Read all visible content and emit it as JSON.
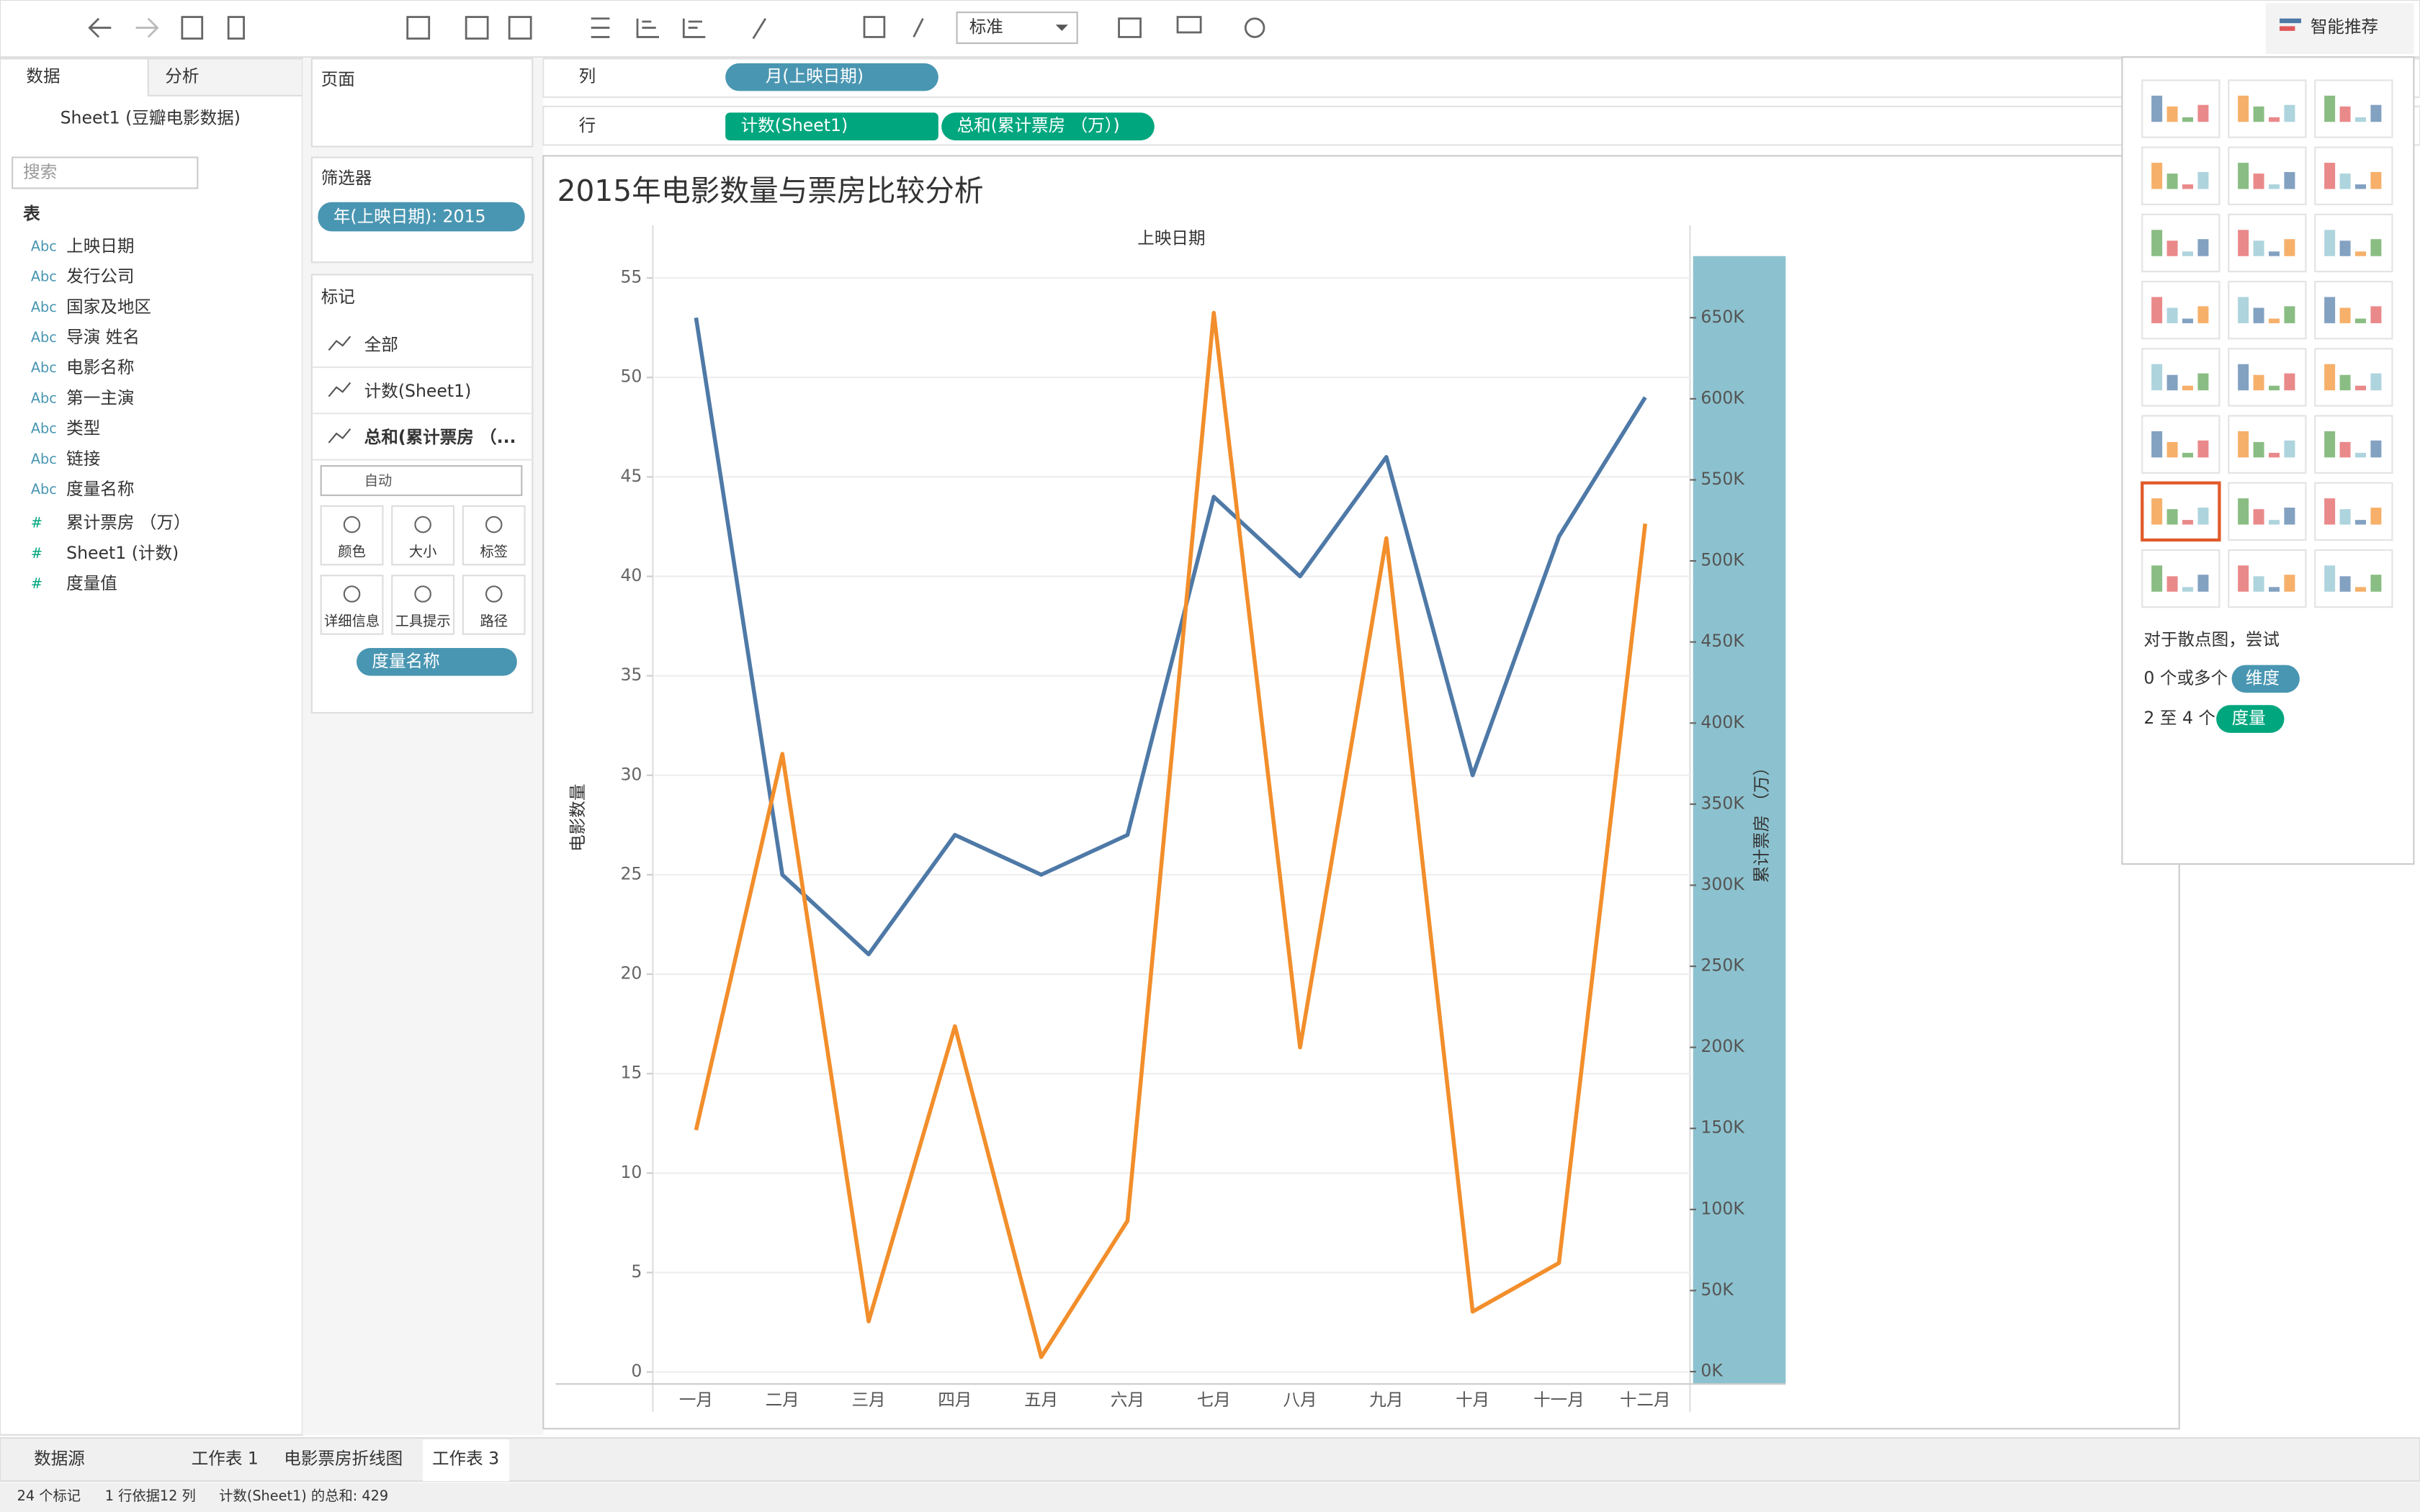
{
  "toolbar": {
    "view_size": "标准",
    "show_me": "智能推荐"
  },
  "data_pane": {
    "tabs": [
      "数据",
      "分析"
    ],
    "source": "Sheet1 (豆瓣电影数据)",
    "search": "搜索",
    "section": "表",
    "fields": [
      {
        "icon": "Abc",
        "name": "上映日期"
      },
      {
        "icon": "Abc",
        "name": "发行公司"
      },
      {
        "icon": "Abc",
        "name": "国家及地区"
      },
      {
        "icon": "Abc",
        "name": "导演 姓名"
      },
      {
        "icon": "Abc",
        "name": "电影名称"
      },
      {
        "icon": "Abc",
        "name": "第一主演"
      },
      {
        "icon": "Abc",
        "name": "类型"
      },
      {
        "icon": "Abc",
        "name": "链接"
      },
      {
        "icon": "Abc",
        "name": "度量名称"
      },
      {
        "icon": "#",
        "name": "累计票房 （万）"
      },
      {
        "icon": "#",
        "name": "Sheet1 (计数)"
      },
      {
        "icon": "#",
        "name": "度量值"
      }
    ]
  },
  "cards": {
    "pages": "页面",
    "filters": "筛选器",
    "filter_pill": "年(上映日期): 2015",
    "marks": "标记",
    "mark_rows": [
      "全部",
      "计数(Sheet1)",
      "总和(累计票房 （..."
    ],
    "mark_type": "自动",
    "mark_buttons": [
      "颜色",
      "大小",
      "标签",
      "详细信息",
      "工具提示",
      "路径"
    ],
    "color_pill": "度量名称"
  },
  "shelves": {
    "columns": "列",
    "columns_pill": "月(上映日期)",
    "rows": "行",
    "rows_pills": [
      "计数(Sheet1)",
      "总和(累计票房 （万）)"
    ]
  },
  "show_me": {
    "hint": "对于散点图，尝试",
    "dim_text": "0 个或多个",
    "dim_pill": "维度",
    "mea_text": "2 至 4 个",
    "mea_pill": "度量"
  },
  "sheet_tabs": [
    "数据源",
    "工作表 1",
    "电影票房折线图",
    "工作表 3"
  ],
  "status": [
    "24 个标记",
    "1 行依据12 列",
    "计数(Sheet1) 的总和: 429"
  ],
  "chart_data": {
    "type": "line",
    "title": "2015年电影数量与票房比较分析",
    "x_header": "上映日期",
    "y_label": "电影数量",
    "y2_label": "累计票房 （万）",
    "categories": [
      "一月",
      "二月",
      "三月",
      "四月",
      "五月",
      "六月",
      "七月",
      "八月",
      "九月",
      "十月",
      "十一月",
      "十二月"
    ],
    "series": [
      {
        "name": "计数(Sheet1)",
        "color": "#4e79a7",
        "values": [
          53,
          25,
          21,
          27,
          25,
          27,
          44,
          40,
          46,
          30,
          42,
          49
        ]
      },
      {
        "name": "总和(累计票房 （万）)",
        "color": "#f28e2b",
        "axis": "y2",
        "values": [
          149000,
          381000,
          31000,
          213000,
          9000,
          93000,
          653000,
          200000,
          514000,
          37000,
          67000,
          523000
        ]
      }
    ],
    "ylim": [
      -0.6,
      56.1
    ],
    "yticks": [
      0,
      5,
      10,
      15,
      20,
      25,
      30,
      35,
      40,
      45,
      50,
      55
    ],
    "y2lim": [
      -7600,
      688000
    ],
    "y2ticks": [
      {
        "value": 0,
        "label": "0K"
      },
      {
        "value": 50000,
        "label": "50K"
      },
      {
        "value": 100000,
        "label": "100K"
      },
      {
        "value": 150000,
        "label": "150K"
      },
      {
        "value": 200000,
        "label": "200K"
      },
      {
        "value": 250000,
        "label": "250K"
      },
      {
        "value": 300000,
        "label": "300K"
      },
      {
        "value": 350000,
        "label": "350K"
      },
      {
        "value": 400000,
        "label": "400K"
      },
      {
        "value": 450000,
        "label": "450K"
      },
      {
        "value": 500000,
        "label": "500K"
      },
      {
        "value": 550000,
        "label": "550K"
      },
      {
        "value": 600000,
        "label": "600K"
      },
      {
        "value": 650000,
        "label": "650K"
      }
    ],
    "grid": true
  }
}
